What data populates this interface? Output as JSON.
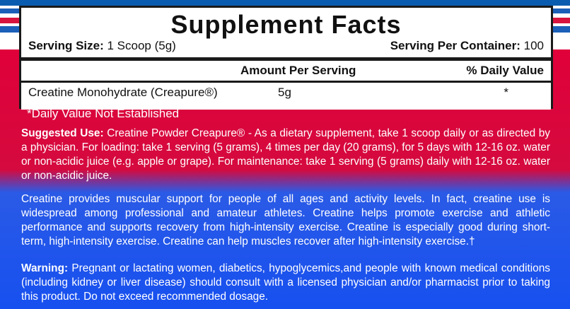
{
  "facts": {
    "title": "Supplement Facts",
    "serving_size_label": "Serving Size:",
    "serving_size_value": " 1 Scoop (5g)",
    "servings_label": "Serving Per Container:",
    "servings_value": " 100",
    "columns": [
      "Amount Per Serving",
      "% Daily Value"
    ],
    "rows": [
      {
        "name": "Creatine Monohydrate (Creapure®)",
        "amount": "5g",
        "dv": "*"
      }
    ]
  },
  "footnote": "*Daily Value Not Established",
  "suggested_use": {
    "label": "Suggested Use:",
    "text": " Creatine Powder Creapure® - As a dietary supplement, take 1 scoop daily or as directed by a physician. For loading: take 1 serving (5 grams), 4 times per day (20 grams), for 5 days with 12-16 oz. water or non-acidic juice (e.g. apple or grape). For maintenance: take 1 serving (5 grams) daily with 12-16 oz. water or non-acidic juice."
  },
  "description": "Creatine provides muscular support for people of all ages and activity levels. In fact, creatine use is widespread among professional and amateur athletes. Creatine helps promote exercise and athletic performance and supports recovery from high-intensity exercise. Creatine is especially good during short-term, high-intensity exercise. Creatine can help muscles recover after high-intensity exercise.†",
  "warning": {
    "label": "Warning:",
    "text": " Pregnant or lactating women, diabetics, hypoglycemics,and people with known medical conditions (including kidney or liver disease) should consult with a licensed physician and/or pharmacist prior to taking this product. Do not exceed recommended dosage."
  },
  "colors": {
    "red": "#e0003a",
    "blue": "#1750f0",
    "stripe_blue": "#1b5fb8"
  }
}
